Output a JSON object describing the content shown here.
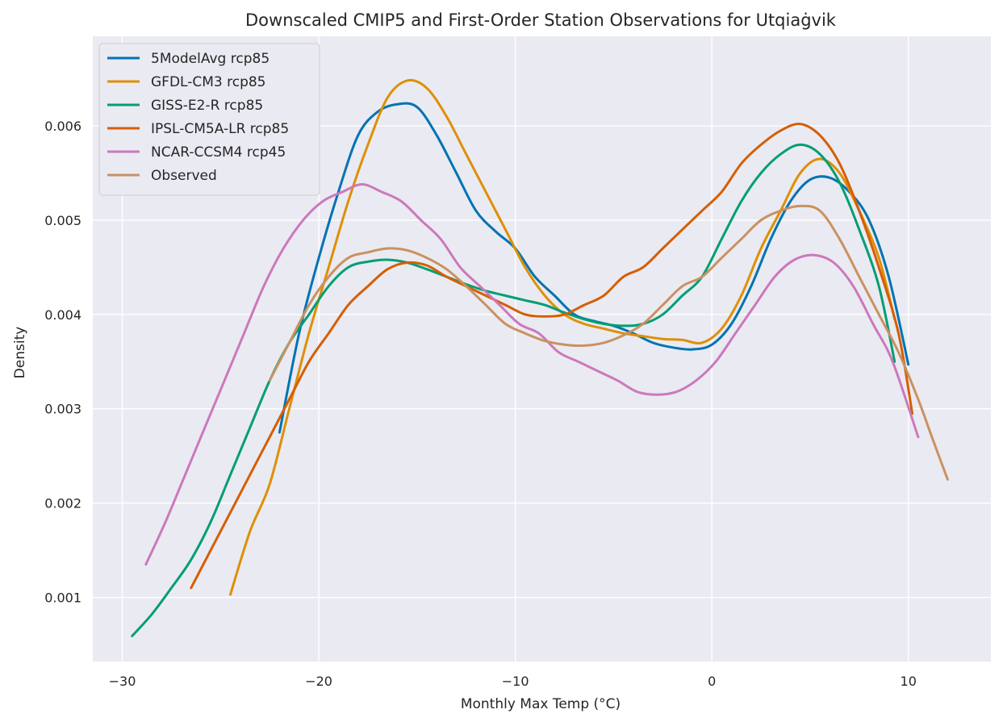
{
  "chart_data": {
    "type": "line",
    "title": "Downscaled CMIP5 and First-Order Station Observations for Utqiaġvik",
    "xlabel": "Monthly Max Temp (°C)",
    "ylabel": "Density",
    "xlim": [
      -31.5,
      14.2
    ],
    "ylim": [
      0.00032,
      0.00695
    ],
    "xticks": [
      -30,
      -20,
      -10,
      0,
      10
    ],
    "xtick_labels": [
      "−30",
      "−20",
      "−10",
      "0",
      "10"
    ],
    "yticks": [
      0.001,
      0.002,
      0.003,
      0.004,
      0.005,
      0.006
    ],
    "ytick_labels": [
      "0.001",
      "0.002",
      "0.003",
      "0.004",
      "0.005",
      "0.006"
    ],
    "grid": true,
    "background": "#eaeaf2",
    "legend_position": "top-left",
    "series": [
      {
        "name": "5ModelAvg rcp85",
        "color": "#0173b2",
        "points": [
          [
            -22,
            0.00275
          ],
          [
            -21,
            0.0038
          ],
          [
            -20,
            0.0046
          ],
          [
            -19,
            0.0053
          ],
          [
            -18,
            0.0059
          ],
          [
            -17,
            0.00615
          ],
          [
            -16,
            0.00623
          ],
          [
            -15,
            0.0062
          ],
          [
            -14,
            0.0059
          ],
          [
            -13,
            0.0055
          ],
          [
            -12,
            0.0051
          ],
          [
            -11,
            0.00488
          ],
          [
            -10,
            0.0047
          ],
          [
            -9,
            0.0044
          ],
          [
            -8,
            0.0042
          ],
          [
            -7,
            0.004
          ],
          [
            -6,
            0.00393
          ],
          [
            -5,
            0.00388
          ],
          [
            -4,
            0.0038
          ],
          [
            -3,
            0.0037
          ],
          [
            -2,
            0.00365
          ],
          [
            -1,
            0.00363
          ],
          [
            0,
            0.00368
          ],
          [
            1,
            0.0039
          ],
          [
            2,
            0.0043
          ],
          [
            3,
            0.0048
          ],
          [
            4,
            0.0052
          ],
          [
            5,
            0.00543
          ],
          [
            6,
            0.00545
          ],
          [
            7,
            0.0053
          ],
          [
            8,
            0.005
          ],
          [
            9,
            0.0044
          ],
          [
            10,
            0.00347
          ]
        ]
      },
      {
        "name": "GFDL-CM3 rcp85",
        "color": "#de8f05",
        "points": [
          [
            -24.5,
            0.00103
          ],
          [
            -23.5,
            0.0017
          ],
          [
            -22.5,
            0.0022
          ],
          [
            -21.5,
            0.003
          ],
          [
            -20.5,
            0.0038
          ],
          [
            -19.5,
            0.0045
          ],
          [
            -18.5,
            0.0052
          ],
          [
            -17.5,
            0.0058
          ],
          [
            -16.5,
            0.0063
          ],
          [
            -15.5,
            0.00648
          ],
          [
            -14.5,
            0.0064
          ],
          [
            -13.5,
            0.0061
          ],
          [
            -12.5,
            0.0057
          ],
          [
            -11.5,
            0.0053
          ],
          [
            -10.5,
            0.0049
          ],
          [
            -9.5,
            0.0045
          ],
          [
            -8.5,
            0.0042
          ],
          [
            -7.5,
            0.004
          ],
          [
            -6.5,
            0.0039
          ],
          [
            -5.5,
            0.00385
          ],
          [
            -4.5,
            0.0038
          ],
          [
            -3.5,
            0.00377
          ],
          [
            -2.5,
            0.00374
          ],
          [
            -1.5,
            0.00373
          ],
          [
            -0.5,
            0.0037
          ],
          [
            0.5,
            0.00385
          ],
          [
            1.5,
            0.0042
          ],
          [
            2.5,
            0.0047
          ],
          [
            3.5,
            0.0051
          ],
          [
            4.5,
            0.0055
          ],
          [
            5.5,
            0.00565
          ],
          [
            6.5,
            0.0055
          ],
          [
            7.5,
            0.0051
          ],
          [
            8.5,
            0.0046
          ],
          [
            9.3,
            0.00395
          ]
        ]
      },
      {
        "name": "GISS-E2-R rcp85",
        "color": "#029e73",
        "points": [
          [
            -29.5,
            0.00059
          ],
          [
            -28.5,
            0.00082
          ],
          [
            -27.5,
            0.0011
          ],
          [
            -26.5,
            0.0014
          ],
          [
            -25.5,
            0.0018
          ],
          [
            -24.5,
            0.0023
          ],
          [
            -23.5,
            0.0028
          ],
          [
            -22.5,
            0.0033
          ],
          [
            -21.5,
            0.0037
          ],
          [
            -20.5,
            0.004
          ],
          [
            -19.5,
            0.0043
          ],
          [
            -18.5,
            0.0045
          ],
          [
            -17.5,
            0.00456
          ],
          [
            -16.5,
            0.00458
          ],
          [
            -15.5,
            0.00455
          ],
          [
            -14.5,
            0.00448
          ],
          [
            -13.5,
            0.0044
          ],
          [
            -12.5,
            0.00432
          ],
          [
            -11.5,
            0.00425
          ],
          [
            -10.5,
            0.0042
          ],
          [
            -9.5,
            0.00415
          ],
          [
            -8.5,
            0.0041
          ],
          [
            -7.5,
            0.00402
          ],
          [
            -6.5,
            0.00395
          ],
          [
            -5.5,
            0.0039
          ],
          [
            -4.5,
            0.00388
          ],
          [
            -3.5,
            0.0039
          ],
          [
            -2.5,
            0.004
          ],
          [
            -1.5,
            0.0042
          ],
          [
            -0.5,
            0.0044
          ],
          [
            0.5,
            0.0048
          ],
          [
            1.5,
            0.0052
          ],
          [
            2.5,
            0.0055
          ],
          [
            3.5,
            0.0057
          ],
          [
            4.5,
            0.0058
          ],
          [
            5.5,
            0.0057
          ],
          [
            6.5,
            0.0054
          ],
          [
            7.5,
            0.0049
          ],
          [
            8.5,
            0.0043
          ],
          [
            9.3,
            0.0035
          ]
        ]
      },
      {
        "name": "IPSL-CM5A-LR rcp85",
        "color": "#d55e00",
        "points": [
          [
            -26.5,
            0.0011
          ],
          [
            -25.5,
            0.0015
          ],
          [
            -24.5,
            0.0019
          ],
          [
            -23.5,
            0.0023
          ],
          [
            -22.5,
            0.0027
          ],
          [
            -21.5,
            0.0031
          ],
          [
            -20.5,
            0.0035
          ],
          [
            -19.5,
            0.0038
          ],
          [
            -18.5,
            0.0041
          ],
          [
            -17.5,
            0.0043
          ],
          [
            -16.5,
            0.00448
          ],
          [
            -15.5,
            0.00455
          ],
          [
            -14.5,
            0.00452
          ],
          [
            -13.5,
            0.0044
          ],
          [
            -12.5,
            0.0043
          ],
          [
            -11.5,
            0.0042
          ],
          [
            -10.5,
            0.0041
          ],
          [
            -9.5,
            0.004
          ],
          [
            -8.5,
            0.00398
          ],
          [
            -7.5,
            0.004
          ],
          [
            -6.5,
            0.0041
          ],
          [
            -5.5,
            0.0042
          ],
          [
            -4.5,
            0.0044
          ],
          [
            -3.5,
            0.0045
          ],
          [
            -2.5,
            0.0047
          ],
          [
            -1.5,
            0.0049
          ],
          [
            -0.5,
            0.0051
          ],
          [
            0.5,
            0.0053
          ],
          [
            1.5,
            0.0056
          ],
          [
            2.5,
            0.0058
          ],
          [
            3.5,
            0.00595
          ],
          [
            4.5,
            0.00602
          ],
          [
            5.5,
            0.0059
          ],
          [
            6.5,
            0.0056
          ],
          [
            7.5,
            0.0051
          ],
          [
            8.5,
            0.0045
          ],
          [
            9.5,
            0.0038
          ],
          [
            10.2,
            0.00295
          ]
        ]
      },
      {
        "name": "NCAR-CCSM4 rcp45",
        "color": "#cc78bc",
        "points": [
          [
            -28.8,
            0.00135
          ],
          [
            -27.8,
            0.0018
          ],
          [
            -26.8,
            0.0023
          ],
          [
            -25.8,
            0.0028
          ],
          [
            -24.8,
            0.0033
          ],
          [
            -23.8,
            0.0038
          ],
          [
            -22.8,
            0.0043
          ],
          [
            -21.8,
            0.0047
          ],
          [
            -20.8,
            0.005
          ],
          [
            -19.8,
            0.0052
          ],
          [
            -18.8,
            0.0053
          ],
          [
            -17.8,
            0.00538
          ],
          [
            -16.8,
            0.0053
          ],
          [
            -15.8,
            0.0052
          ],
          [
            -14.8,
            0.005
          ],
          [
            -13.8,
            0.0048
          ],
          [
            -12.8,
            0.0045
          ],
          [
            -11.8,
            0.0043
          ],
          [
            -10.8,
            0.0041
          ],
          [
            -9.8,
            0.0039
          ],
          [
            -8.8,
            0.0038
          ],
          [
            -7.8,
            0.0036
          ],
          [
            -6.8,
            0.0035
          ],
          [
            -5.8,
            0.0034
          ],
          [
            -4.8,
            0.0033
          ],
          [
            -3.8,
            0.00318
          ],
          [
            -2.8,
            0.00315
          ],
          [
            -1.8,
            0.00318
          ],
          [
            -0.8,
            0.0033
          ],
          [
            0.2,
            0.0035
          ],
          [
            1.2,
            0.0038
          ],
          [
            2.2,
            0.0041
          ],
          [
            3.2,
            0.0044
          ],
          [
            4.2,
            0.00458
          ],
          [
            5.2,
            0.00463
          ],
          [
            6.2,
            0.00455
          ],
          [
            7.2,
            0.0043
          ],
          [
            8.2,
            0.0039
          ],
          [
            9.2,
            0.0035
          ],
          [
            10.5,
            0.0027
          ]
        ]
      },
      {
        "name": "Observed",
        "color": "#ca9161",
        "points": [
          [
            -22.5,
            0.0033
          ],
          [
            -21.5,
            0.0037
          ],
          [
            -20.5,
            0.0041
          ],
          [
            -19.5,
            0.0044
          ],
          [
            -18.5,
            0.0046
          ],
          [
            -17.5,
            0.00466
          ],
          [
            -16.5,
            0.0047
          ],
          [
            -15.5,
            0.00468
          ],
          [
            -14.5,
            0.0046
          ],
          [
            -13.5,
            0.00448
          ],
          [
            -12.5,
            0.0043
          ],
          [
            -11.5,
            0.0041
          ],
          [
            -10.5,
            0.0039
          ],
          [
            -9.5,
            0.0038
          ],
          [
            -8.5,
            0.00372
          ],
          [
            -7.5,
            0.00368
          ],
          [
            -6.5,
            0.00367
          ],
          [
            -5.5,
            0.0037
          ],
          [
            -4.5,
            0.00378
          ],
          [
            -3.5,
            0.0039
          ],
          [
            -2.5,
            0.0041
          ],
          [
            -1.5,
            0.0043
          ],
          [
            -0.5,
            0.0044
          ],
          [
            0.5,
            0.0046
          ],
          [
            1.5,
            0.0048
          ],
          [
            2.5,
            0.005
          ],
          [
            3.5,
            0.0051
          ],
          [
            4.5,
            0.00515
          ],
          [
            5.5,
            0.0051
          ],
          [
            6.5,
            0.0048
          ],
          [
            7.5,
            0.0044
          ],
          [
            8.5,
            0.004
          ],
          [
            9.5,
            0.0036
          ],
          [
            10.5,
            0.0031
          ],
          [
            11.2,
            0.0027
          ],
          [
            12,
            0.00225
          ]
        ]
      }
    ]
  }
}
